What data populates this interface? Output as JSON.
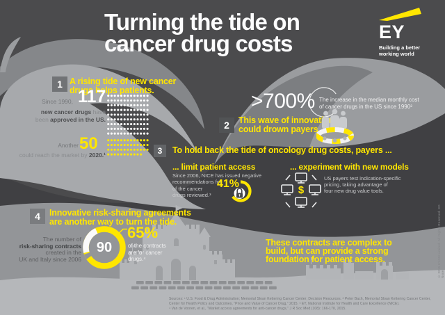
{
  "header": {
    "title1": "Turning the tide on",
    "title2": "cancer drug costs",
    "brand": "EY",
    "tagline1": "Building a better",
    "tagline2": "working world"
  },
  "s1": {
    "badge": "1",
    "h1": "A rising tide of new cancer",
    "h2": "drugs helps patients.",
    "since": "Since 1990,",
    "big": "117",
    "approved_count": 117,
    "dots_per_row": 13,
    "l2_bold": "new cancer drugs",
    "l2_rest": " have",
    "l3_pre": "been ",
    "l3_bold": "approved",
    "l3_post": " in the US.",
    "another": "Another",
    "pipeline": "50",
    "pipeline_count": 50,
    "l4_pre": "could reach the market by ",
    "l4_bold": "2020.¹"
  },
  "s2": {
    "stat": ">700%",
    "cap1": "The increase in the median monthly cost",
    "cap2": "of cancer drugs in the US since 1990²",
    "badge": "2",
    "h1": "This wave of innovation",
    "h2": "could drown payers."
  },
  "s3": {
    "badge": "3",
    "heading": "To hold back the tide of oncology drug costs, payers ...",
    "left": {
      "h": "... limit patient access",
      "b1": "Since 2006, NICE has issued negative",
      "b2": "recommendations for",
      "stat": "41%",
      "b3": "of the cancer",
      "b4": "drugs reviewed.³"
    },
    "right": {
      "h": "... experiment with new models",
      "b1": "US payers test indication-specific",
      "b2": "pricing, taking advantage of",
      "b3": "four new drug value tools.",
      "dollar": "$"
    }
  },
  "s4": {
    "badge": "4",
    "h1": "Innovative risk-sharing agreements",
    "h2": "are another way to turn the tide.",
    "l1": "The number of",
    "l2": "risk-sharing contracts",
    "l3": "created in the",
    "l4": "UK and Italy since 2006",
    "donut": "90",
    "stat": "65%",
    "c1": "of the contracts",
    "c2": "are for cancer",
    "c3": "drugs.⁴"
  },
  "message": {
    "l1": "These contracts are complex to",
    "l2": "build, but can provide a strong",
    "l3": "foundation for patient access."
  },
  "footer": {
    "src1": "Sources: ¹ U.S. Food & Drug Administration; Memorial Sloan Kettering Cancer Center; Decision Resources. ² Peter Bach, Memorial Sloan Kettering Cancer Center,",
    "src2": "Center for Health Policy and Outcomes, “Price and Value of Cancer Drug,” 2015. ³ EY, National Institute for Health and Care Excellence (NICE).",
    "src3": "⁴ Van de Vooren, et al., “Market access agreements for anti-cancer drugs,” J R Soc Med (108): 166-170, 2015.",
    "copyright": "© 2015 EYGM Limited. All Rights Reserved. ED None"
  },
  "icons": {
    "brand_beam": "ey-yellow-beam",
    "drowning_payers": "people-in-lifebuoy",
    "limit_access": "padlock-gauge",
    "new_models": "monitors-dollar-cycle",
    "risk_sharing": "donut-ring"
  },
  "colors": {
    "yellow": "#FFE600",
    "dark": "#4B4B4D",
    "light_wave": "#A7A9AC",
    "sand": "#B5B7BA"
  }
}
